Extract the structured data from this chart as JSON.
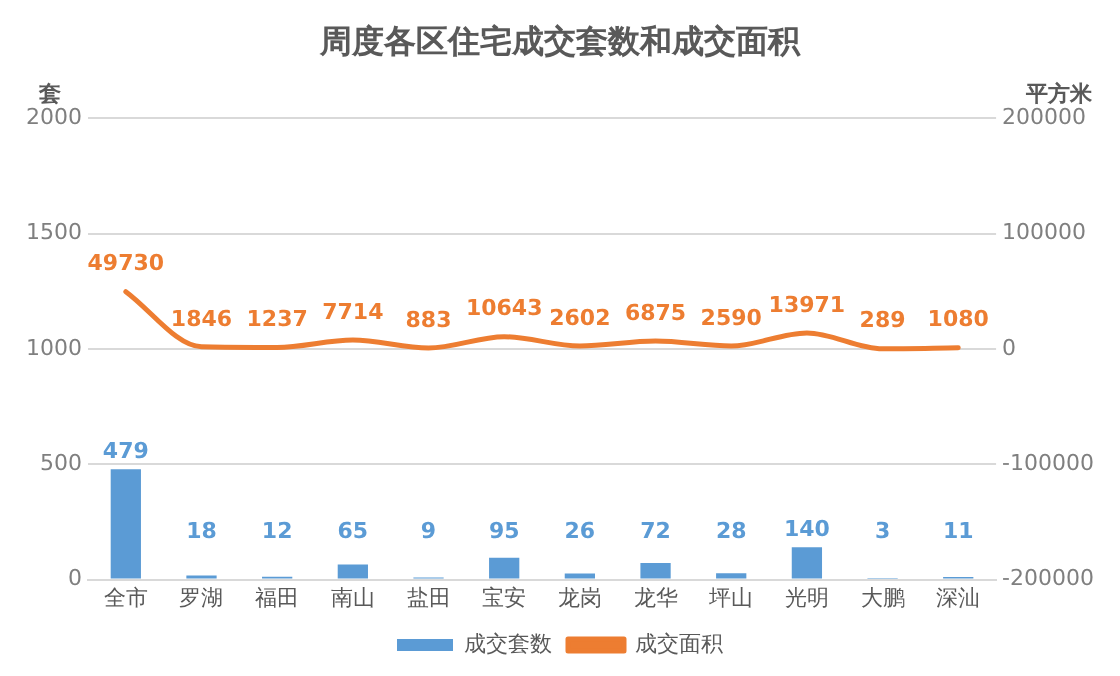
{
  "chart_data": {
    "type": "bar",
    "title": "周度各区住宅成交套数和成交面积",
    "ylabel": "套",
    "y2label": "平方米",
    "categories": [
      "全市",
      "罗湖",
      "福田",
      "南山",
      "盐田",
      "宝安",
      "龙岗",
      "龙华",
      "坪山",
      "光明",
      "大鹏",
      "深汕"
    ],
    "series": [
      {
        "name": "成交套数",
        "color": "#5b9bd5",
        "values": [
          479,
          18,
          12,
          65,
          9,
          95,
          26,
          72,
          28,
          140,
          3,
          11
        ]
      },
      {
        "name": "成交面积",
        "type": "line",
        "axis": "y2",
        "color": "#ed7d31",
        "values": [
          49730,
          1846,
          1237,
          7714,
          883,
          10643,
          2602,
          6875,
          2590,
          13971,
          289,
          1080
        ]
      }
    ],
    "ylim": [
      0,
      2000
    ],
    "yticks": [
      0,
      500,
      1000,
      1500,
      2000
    ],
    "y2lim": [
      -200000,
      200000
    ],
    "y2ticks": [
      -200000,
      -100000,
      0,
      100000,
      200000
    ],
    "grid": "y",
    "legend": "bottom",
    "data_labels": true,
    "marker": "none",
    "line_style": "solid"
  }
}
